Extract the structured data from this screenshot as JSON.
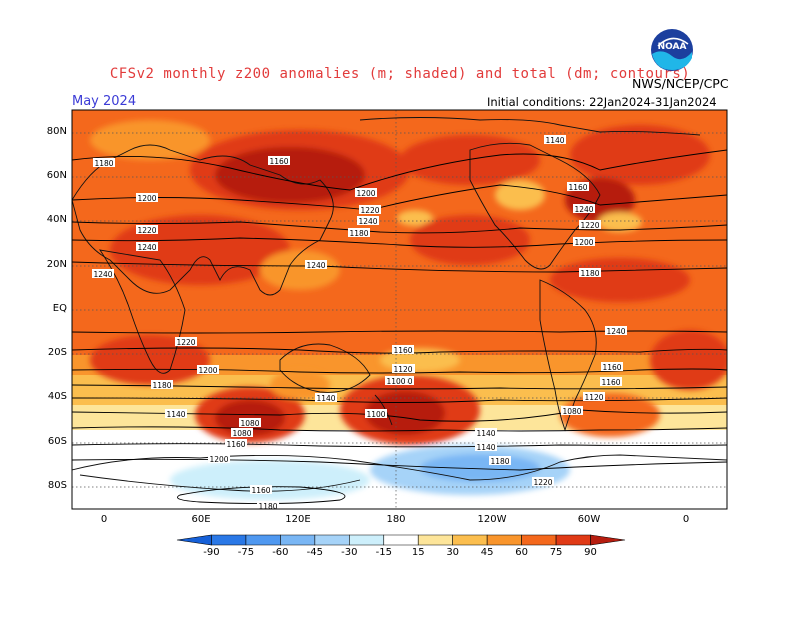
{
  "header": {
    "title": "CFSv2 monthly z200 anomalies (m; shaded) and total (dm; contours)",
    "month": "May 2024",
    "initial_conditions": "Initial conditions: 22Jan2024-31Jan2024",
    "agency": "NWS/NCEP/CPC",
    "logo_text": "NOAA"
  },
  "axes": {
    "lat_labels": [
      "80N",
      "60N",
      "40N",
      "20N",
      "EQ",
      "20S",
      "40S",
      "60S",
      "80S"
    ],
    "lon_labels": [
      "0",
      "60E",
      "120E",
      "180",
      "120W",
      "60W",
      "0"
    ]
  },
  "contours": {
    "labels": [
      "1140",
      "1160",
      "1180",
      "1200",
      "1220",
      "1240",
      "1240",
      "1240",
      "1240",
      "1240",
      "1220",
      "1220",
      "1200",
      "1200",
      "1180",
      "1180",
      "1160",
      "1160",
      "1140",
      "1140",
      "1120",
      "1100",
      "1080",
      "1080",
      "1080",
      "1080",
      "1140",
      "1160",
      "1180",
      "1200",
      "1220",
      "1160",
      "1180",
      "1200",
      "1220",
      "1240",
      "1180",
      "1160",
      "1240",
      "1220",
      "1200",
      "1180",
      "1160",
      "1120",
      "1100",
      "1140"
    ]
  },
  "colorbar": {
    "labels": [
      "-90",
      "-75",
      "-60",
      "-45",
      "-30",
      "-15",
      "15",
      "30",
      "45",
      "60",
      "75",
      "90"
    ],
    "colors": [
      "#1560d8",
      "#2a78e6",
      "#4f98f0",
      "#79b6f4",
      "#a6d3f8",
      "#cdeffb",
      "#ffffff",
      "#fde59a",
      "#fbbe4e",
      "#f9952c",
      "#f4681c",
      "#e03a16",
      "#b61d0f"
    ]
  }
}
